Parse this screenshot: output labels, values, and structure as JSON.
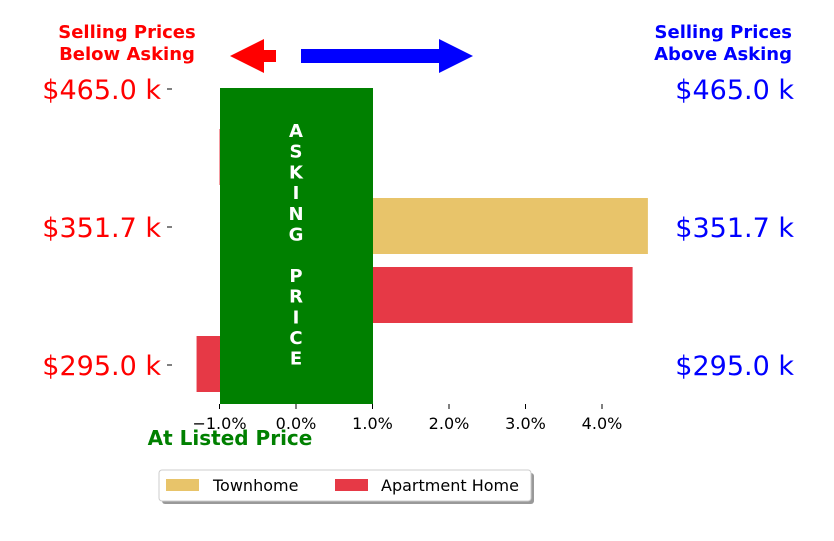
{
  "header": {
    "below_line1": "Selling Prices",
    "below_line2": "Below Asking",
    "above_line1": "Selling Prices",
    "above_line2": "Above Asking",
    "below_color": "#ff0000",
    "above_color": "#0000ff"
  },
  "asking_band": {
    "letters": [
      "A",
      "S",
      "K",
      "I",
      "N",
      "G",
      "",
      "P",
      "R",
      "I",
      "C",
      "E"
    ],
    "color": "#008000",
    "range": [
      -1.0,
      1.0
    ]
  },
  "listed_label": "At Listed Price",
  "listed_color": "#008000",
  "price_labels": [
    "$465.0 k",
    "$351.7 k",
    "$295.0 k"
  ],
  "legend": {
    "items": [
      {
        "label": "Townhome",
        "color": "#e8c46a"
      },
      {
        "label": "Apartment Home",
        "color": "#e63946"
      }
    ]
  },
  "chart_data": {
    "type": "bar",
    "orientation": "horizontal",
    "categories": [
      "$465.0 k",
      "$351.7 k",
      "$295.0 k"
    ],
    "series": [
      {
        "name": "Townhome",
        "color": "#e8c46a",
        "values": [
          null,
          4.6,
          null
        ]
      },
      {
        "name": "Apartment Home",
        "color": "#e63946",
        "values": [
          -1.0,
          4.4,
          -1.3
        ]
      }
    ],
    "xlim": [
      -1.35,
      4.6
    ],
    "xticks": [
      -1.0,
      0.0,
      1.0,
      2.0,
      3.0,
      4.0
    ],
    "xtick_labels": [
      "−1.0%",
      "0.0%",
      "1.0%",
      "2.0%",
      "3.0%",
      "4.0%"
    ],
    "xlabel": "",
    "ylabel": "",
    "legend_position": "bottom"
  }
}
